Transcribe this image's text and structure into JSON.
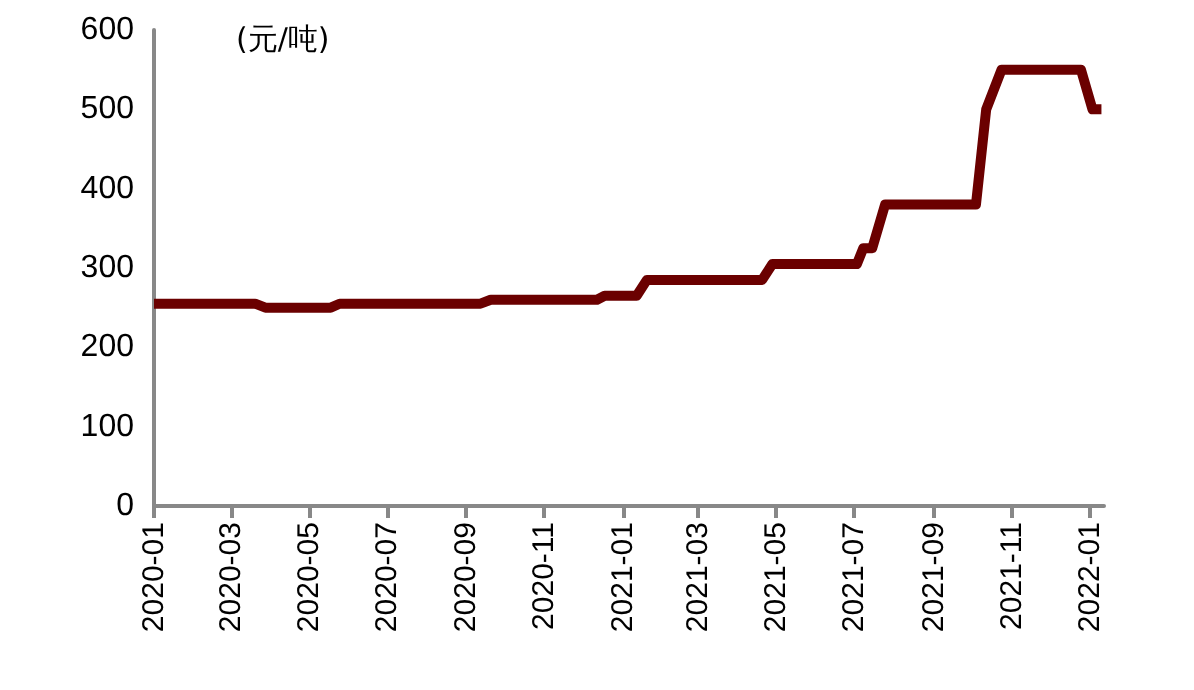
{
  "chart_data": {
    "type": "line",
    "ylabel": "(元/吨)",
    "x": [
      "2020-01-01",
      "2020-03-20",
      "2020-03-28",
      "2020-05-18",
      "2020-05-25",
      "2020-09-12",
      "2020-09-20",
      "2020-12-12",
      "2020-12-18",
      "2021-01-12",
      "2021-01-20",
      "2021-04-20",
      "2021-04-28",
      "2021-07-03",
      "2021-07-08",
      "2021-07-15",
      "2021-07-25",
      "2021-10-04",
      "2021-10-12",
      "2021-10-24",
      "2021-12-25",
      "2022-01-03",
      "2022-01-10"
    ],
    "series": [
      {
        "color": "#6b0000",
        "values": [
          255,
          255,
          250,
          250,
          255,
          255,
          260,
          260,
          265,
          265,
          285,
          285,
          305,
          305,
          325,
          325,
          380,
          380,
          500,
          550,
          550,
          500,
          500
        ]
      }
    ],
    "xlim": [
      "2020-01-01",
      "2022-01-12"
    ],
    "xticks": [
      "2020-01",
      "2020-03",
      "2020-05",
      "2020-07",
      "2020-09",
      "2020-11",
      "2021-01",
      "2021-03",
      "2021-05",
      "2021-07",
      "2021-09",
      "2021-11",
      "2022-01"
    ],
    "ylim": [
      0,
      600
    ],
    "yticks": [
      0,
      100,
      200,
      300,
      400,
      500,
      600
    ],
    "grid": false,
    "marker": "none",
    "line_style": "solid"
  }
}
